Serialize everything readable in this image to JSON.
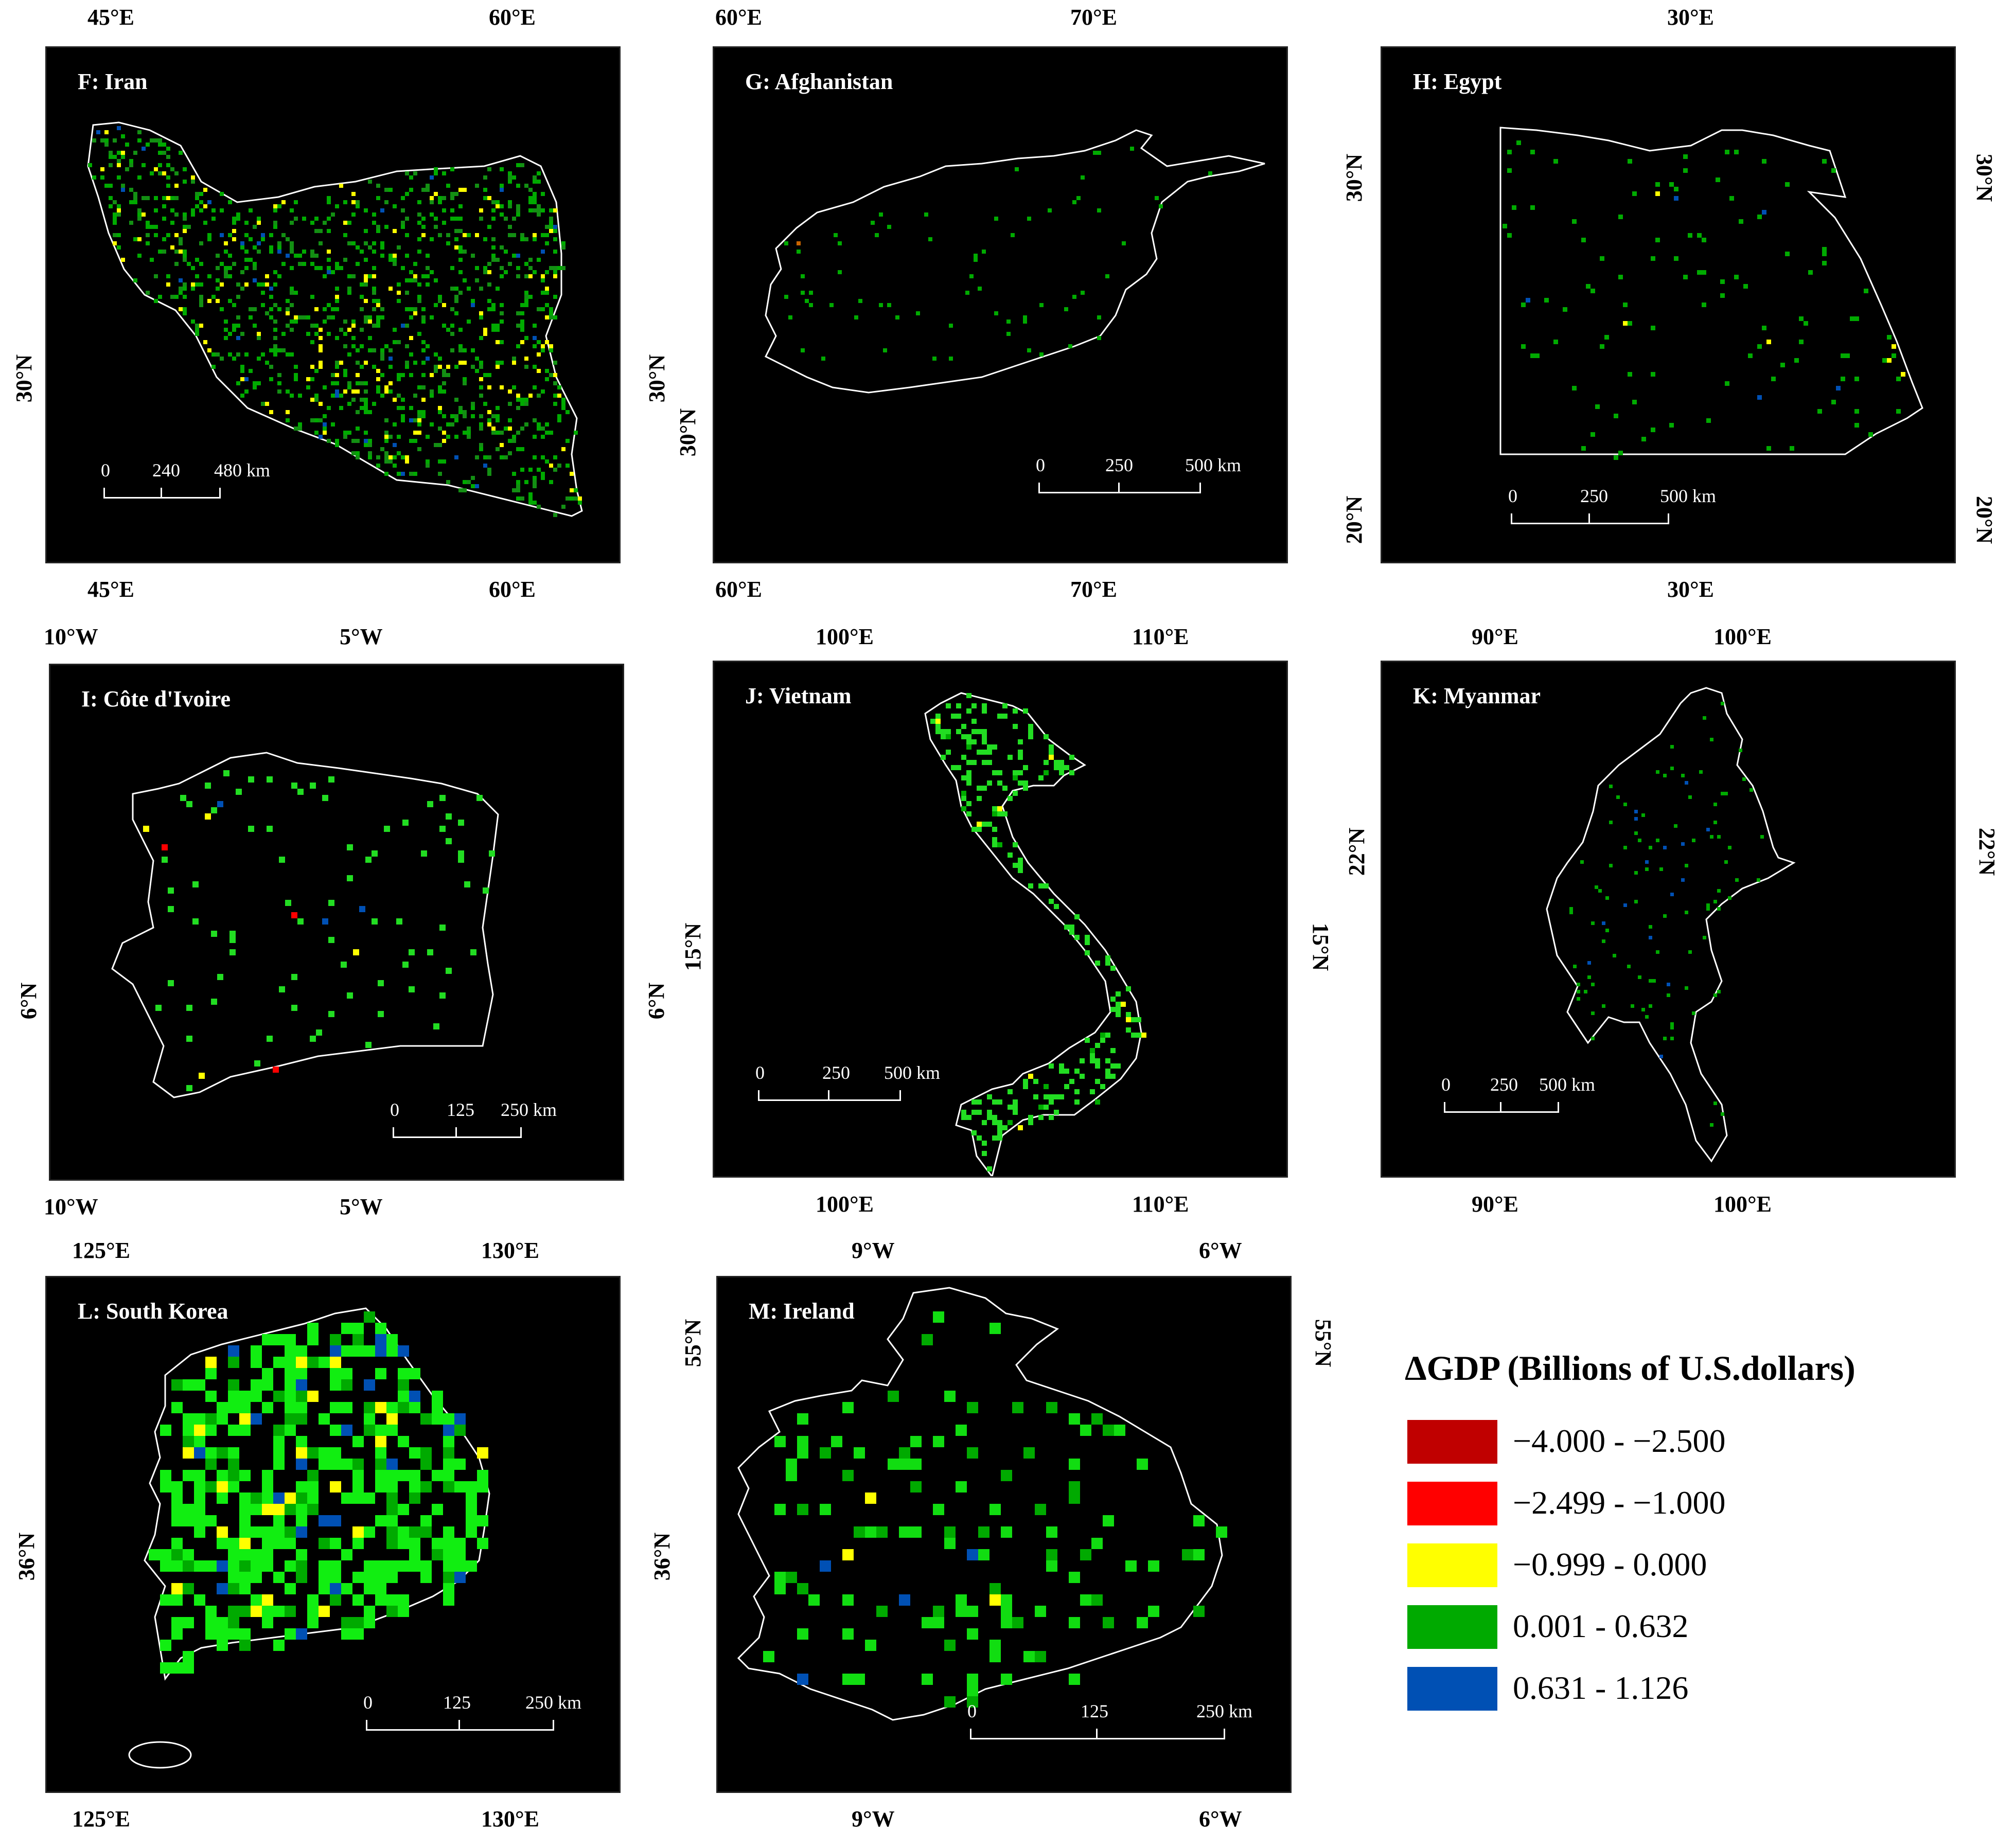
{
  "legend": {
    "title": "ΔGDP (Billions of U.S.dollars)",
    "items": [
      {
        "label": "−4.000 - −2.500",
        "color": "#c00000"
      },
      {
        "label": "−2.499 - −1.000",
        "color": "#ff0000"
      },
      {
        "label": "−0.999 - 0.000",
        "color": "#ffff00"
      },
      {
        "label": "0.001 - 0.632",
        "color": "#00aa00"
      },
      {
        "label": "0.631 - 1.126",
        "color": "#0050b4"
      }
    ]
  },
  "panels": [
    {
      "id": "F",
      "title": "F: Iran",
      "top_ticks": [
        "45°E",
        "60°E"
      ],
      "bottom_ticks": [
        "45°E",
        "60°E"
      ],
      "left_ticks": [
        "30°N"
      ],
      "right_ticks": [],
      "scale": [
        "0",
        "240",
        "480 km"
      ]
    },
    {
      "id": "G",
      "title": "G: Afghanistan",
      "top_ticks": [
        "60°E",
        "70°E"
      ],
      "bottom_ticks": [
        "60°E",
        "70°E"
      ],
      "left_ticks": [
        "30°N"
      ],
      "right_ticks": [
        "30°N"
      ],
      "scale": [
        "0",
        "250",
        "500 km"
      ]
    },
    {
      "id": "H",
      "title": "H: Egypt",
      "top_ticks": [
        "30°E"
      ],
      "bottom_ticks": [
        "30°E"
      ],
      "left_ticks": [
        "30°N",
        "20°N"
      ],
      "right_ticks": [
        "30°N",
        "20°N"
      ],
      "scale": [
        "0",
        "250",
        "500 km"
      ]
    },
    {
      "id": "I",
      "title": "I: Côte d'Ivoire",
      "top_ticks": [
        "10°W",
        "5°W"
      ],
      "bottom_ticks": [
        "10°W",
        "5°W"
      ],
      "left_ticks": [
        "6°N"
      ],
      "right_ticks": [
        "6°N"
      ],
      "scale": [
        "0",
        "125",
        "250 km"
      ]
    },
    {
      "id": "J",
      "title": "J: Vietnam",
      "top_ticks": [
        "100°E",
        "110°E"
      ],
      "bottom_ticks": [
        "100°E",
        "110°E"
      ],
      "left_ticks": [
        "15°N"
      ],
      "right_ticks": [
        "15°N"
      ],
      "scale": [
        "0",
        "250",
        "500 km"
      ]
    },
    {
      "id": "K",
      "title": "K: Myanmar",
      "top_ticks": [
        "90°E",
        "100°E"
      ],
      "bottom_ticks": [
        "90°E",
        "100°E"
      ],
      "left_ticks": [
        "22°N"
      ],
      "right_ticks": [
        "22°N"
      ],
      "scale": [
        "0",
        "250",
        "500 km"
      ]
    },
    {
      "id": "L",
      "title": "L: South Korea",
      "top_ticks": [
        "125°E",
        "130°E"
      ],
      "bottom_ticks": [
        "125°E",
        "130°E"
      ],
      "left_ticks": [
        "36°N"
      ],
      "right_ticks": [
        "36°N"
      ],
      "scale": [
        "0",
        "125",
        "250 km"
      ]
    },
    {
      "id": "M",
      "title": "M: Ireland",
      "top_ticks": [
        "9°W",
        "6°W"
      ],
      "bottom_ticks": [
        "9°W",
        "6°W"
      ],
      "left_ticks": [
        "55°N"
      ],
      "right_ticks": [
        "55°N"
      ],
      "scale": [
        "0",
        "125",
        "250 km"
      ]
    }
  ]
}
